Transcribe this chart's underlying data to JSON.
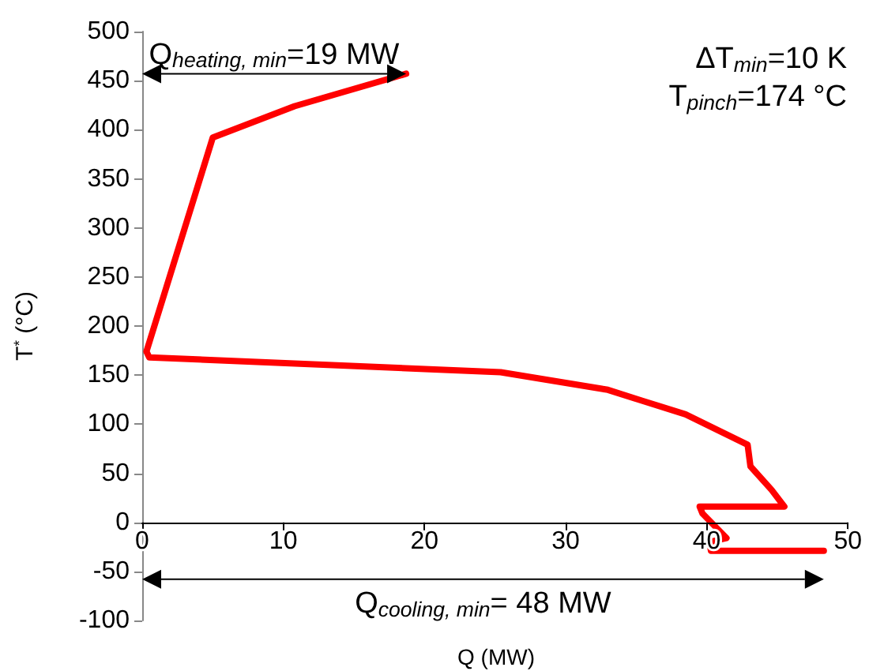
{
  "chart_data": {
    "type": "line",
    "xlabel": "Q (MW)",
    "ylabel": "T$^{*}$ (°C)",
    "series": [
      {
        "color": "#ff0000",
        "x": [
          18.7,
          10.8,
          5.0,
          0.3,
          0.5,
          25.4,
          33.0,
          35.4,
          38.5,
          42.9,
          43.1,
          44.6,
          45.5,
          39.5,
          39.7,
          41.4,
          40.2,
          40.3,
          48.3
        ],
        "values": [
          457,
          424,
          392,
          174,
          168,
          153,
          135,
          124,
          110,
          79,
          57,
          33,
          16,
          16,
          9,
          -16,
          -20,
          -29,
          -29
        ]
      }
    ],
    "xlim": [
      0,
      50
    ],
    "xticks": [
      0,
      10,
      20,
      30,
      40,
      50
    ],
    "ylim": [
      -100,
      500
    ],
    "yticks": [
      -100,
      -50,
      0,
      50,
      100,
      150,
      200,
      250,
      300,
      350,
      400,
      450,
      500
    ],
    "marker": "none",
    "line_style": "solid",
    "annotations": [
      {
        "text": "Q$_{heating, min}$=19 MW",
        "x": 18.7,
        "y": 457
      },
      "Q$_{cooling, min}$= 48 MW",
      "ΔT$_{min}$=10 K",
      "T$_{pinch}$=174 °C"
    ]
  }
}
